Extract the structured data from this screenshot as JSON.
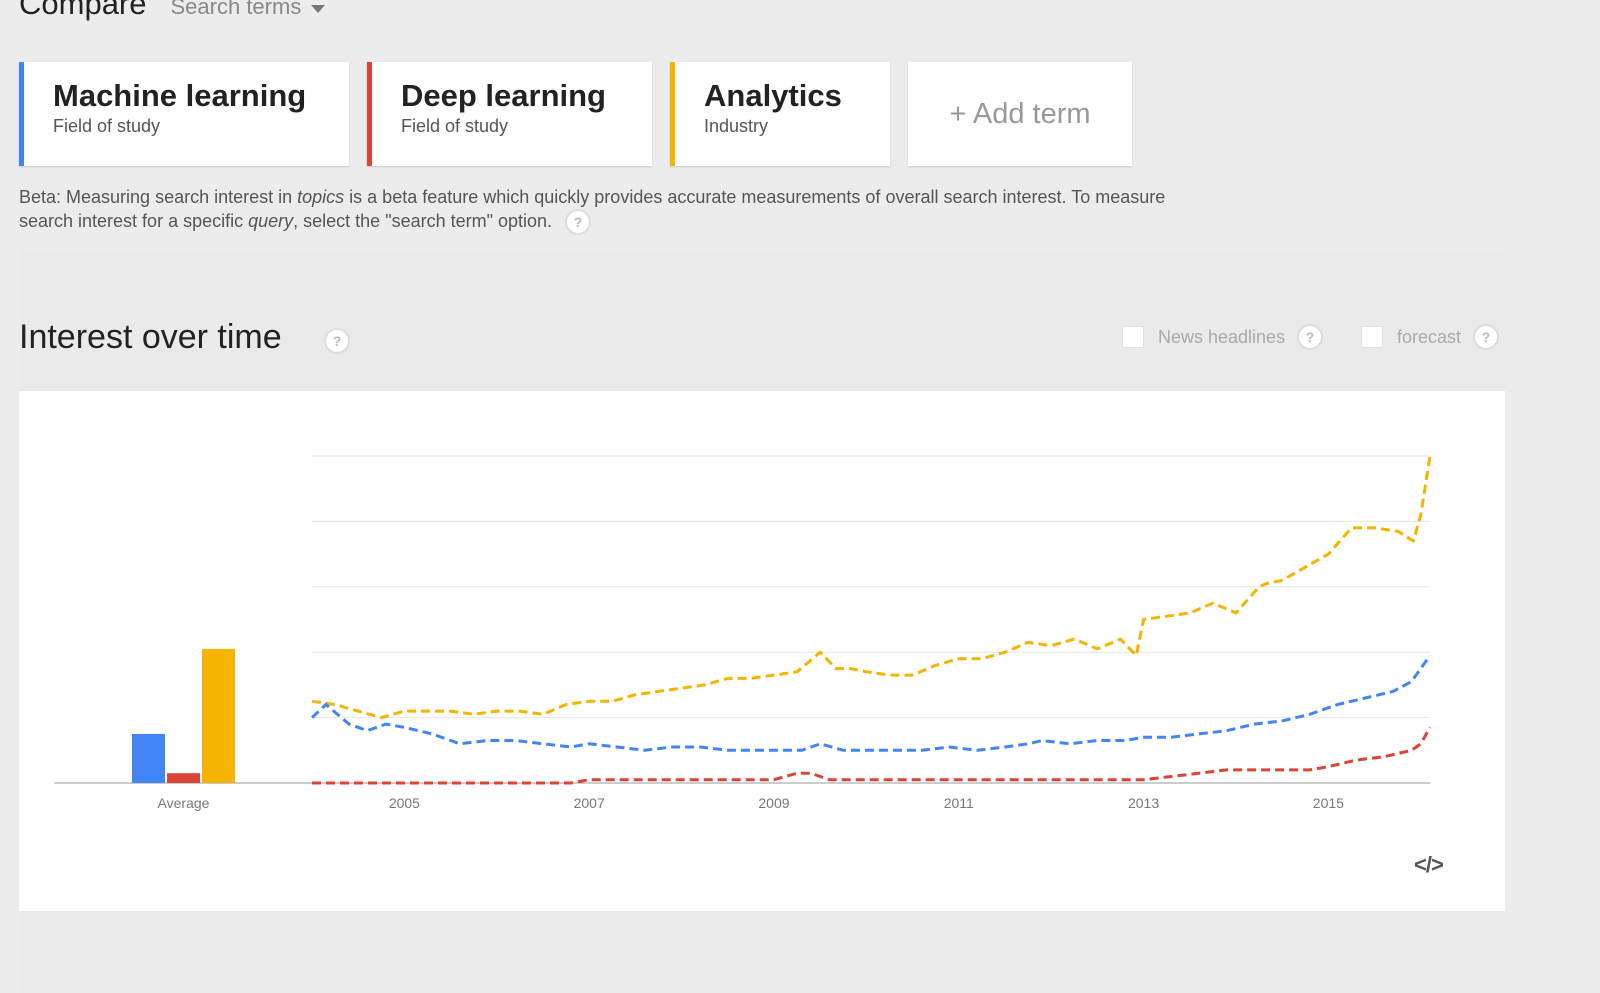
{
  "header": {
    "title": "Compare",
    "mode_label": "Search terms"
  },
  "terms": [
    {
      "name": "Machine learning",
      "type": "Field of study",
      "color": "#4285f4"
    },
    {
      "name": "Deep learning",
      "type": "Field of study",
      "color": "#db4437"
    },
    {
      "name": "Analytics",
      "type": "Industry",
      "color": "#f4b400"
    }
  ],
  "add_term_label": "+ Add term",
  "beta_note": {
    "part1": "Beta: Measuring search interest in ",
    "em1": "topics",
    "part2": " is a beta feature which quickly provides accurate measurements of overall search interest. To measure search interest for a specific ",
    "em2": "query",
    "part3": ", select the \"search term\" option.",
    "help": "?"
  },
  "section": {
    "title": "Interest over time",
    "help": "?",
    "options": [
      {
        "label": "News headlines",
        "checked": false
      },
      {
        "label": "forecast",
        "checked": false
      }
    ]
  },
  "embed_icon": "</>",
  "chart_data": {
    "type": "line",
    "x_tick_labels": [
      "2005",
      "2007",
      "2009",
      "2011",
      "2013",
      "2015"
    ],
    "x_ticks": [
      2005,
      2007,
      2009,
      2011,
      2013,
      2015
    ],
    "xlim": [
      2004.0,
      2016.1
    ],
    "ylim": [
      0,
      100
    ],
    "grid": true,
    "average_label": "Average",
    "averages": [
      {
        "name": "Machine learning",
        "value": 15,
        "color": "#4285f4"
      },
      {
        "name": "Deep learning",
        "value": 3,
        "color": "#db4437"
      },
      {
        "name": "Analytics",
        "value": 41,
        "color": "#f4b400"
      }
    ],
    "series": [
      {
        "name": "Analytics",
        "color": "#f4b400",
        "x": [
          2004.0,
          2004.25,
          2004.5,
          2004.75,
          2005.0,
          2005.25,
          2005.5,
          2005.75,
          2006.0,
          2006.25,
          2006.5,
          2006.75,
          2007.0,
          2007.25,
          2007.5,
          2007.75,
          2008.0,
          2008.25,
          2008.5,
          2008.75,
          2009.0,
          2009.25,
          2009.5,
          2009.67,
          2009.83,
          2010.0,
          2010.25,
          2010.5,
          2010.75,
          2011.0,
          2011.25,
          2011.5,
          2011.75,
          2012.0,
          2012.25,
          2012.5,
          2012.75,
          2012.92,
          2013.0,
          2013.25,
          2013.5,
          2013.75,
          2014.0,
          2014.25,
          2014.33,
          2014.5,
          2014.75,
          2015.0,
          2015.25,
          2015.5,
          2015.75,
          2015.92,
          2016.0,
          2016.1
        ],
        "values": [
          25,
          24,
          22,
          20,
          22,
          22,
          22,
          21,
          22,
          22,
          21,
          24,
          25,
          25,
          27,
          28,
          29,
          30,
          32,
          32,
          33,
          34,
          40,
          35,
          35,
          34,
          33,
          33,
          36,
          38,
          38,
          40,
          43,
          42,
          44,
          41,
          44,
          39,
          50,
          51,
          52,
          55,
          52,
          60,
          61,
          62,
          66,
          70,
          78,
          78,
          77,
          74,
          82,
          100
        ]
      },
      {
        "name": "Machine learning",
        "color": "#4285f4",
        "x": [
          2004.0,
          2004.15,
          2004.4,
          2004.6,
          2004.8,
          2005.0,
          2005.3,
          2005.6,
          2005.9,
          2006.2,
          2006.5,
          2006.8,
          2007.0,
          2007.3,
          2007.6,
          2007.9,
          2008.2,
          2008.5,
          2008.8,
          2009.0,
          2009.3,
          2009.5,
          2009.75,
          2010.0,
          2010.3,
          2010.6,
          2010.9,
          2011.2,
          2011.5,
          2011.75,
          2011.9,
          2012.2,
          2012.5,
          2012.8,
          2013.0,
          2013.3,
          2013.6,
          2013.9,
          2014.2,
          2014.5,
          2014.8,
          2015.1,
          2015.4,
          2015.7,
          2015.9,
          2016.1
        ],
        "values": [
          20,
          24,
          18,
          16,
          18,
          17,
          15,
          12,
          13,
          13,
          12,
          11,
          12,
          11,
          10,
          11,
          11,
          10,
          10,
          10,
          10,
          12,
          10,
          10,
          10,
          10,
          11,
          10,
          11,
          12,
          13,
          12,
          13,
          13,
          14,
          14,
          15,
          16,
          18,
          19,
          21,
          24,
          26,
          28,
          31,
          39
        ]
      },
      {
        "name": "Deep learning",
        "color": "#db4437",
        "x": [
          2004.0,
          2005.0,
          2006.0,
          2006.8,
          2007.0,
          2007.5,
          2008.0,
          2008.5,
          2009.0,
          2009.25,
          2009.4,
          2009.6,
          2010.0,
          2010.5,
          2011.0,
          2011.5,
          2012.0,
          2012.5,
          2013.0,
          2013.3,
          2013.6,
          2013.9,
          2014.2,
          2014.5,
          2014.8,
          2015.0,
          2015.3,
          2015.6,
          2015.9,
          2016.0,
          2016.1
        ],
        "values": [
          0,
          0,
          0,
          0,
          1,
          1,
          1,
          1,
          1,
          3,
          3,
          1,
          1,
          1,
          1,
          1,
          1,
          1,
          1,
          2,
          3,
          4,
          4,
          4,
          4,
          5,
          7,
          8,
          10,
          12,
          17
        ]
      }
    ]
  }
}
